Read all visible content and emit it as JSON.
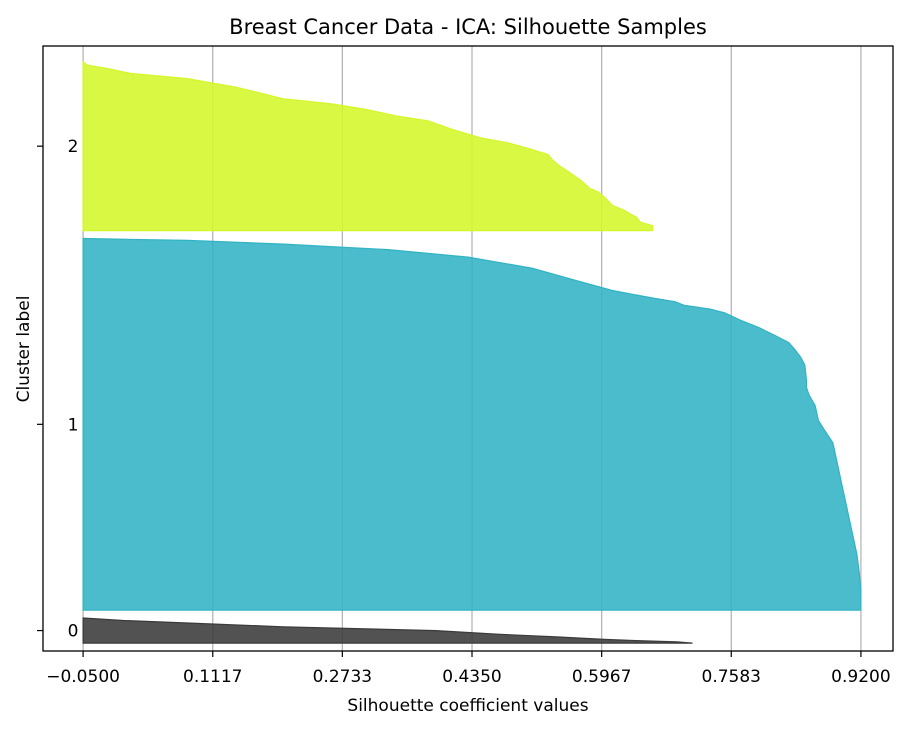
{
  "chart_data": {
    "type": "area",
    "title": "Breast Cancer Data - ICA: Silhouette Samples",
    "xlabel": "Silhouette coefficient values",
    "ylabel": "Cluster label",
    "x_ticks": [
      "−0.0500",
      "0.1117",
      "0.2733",
      "0.4350",
      "0.5967",
      "0.7583",
      "0.9200"
    ],
    "x_tick_values": [
      -0.05,
      0.1117,
      0.2733,
      0.435,
      0.5967,
      0.7583,
      0.92
    ],
    "xlim": [
      -0.1,
      0.96
    ],
    "ylim": [
      0,
      770
    ],
    "grid": "x",
    "series": [
      {
        "name": "0",
        "color": "#3a3a3a",
        "y_start": 10,
        "y_end": 42,
        "profile": [
          [
            0,
            0.71
          ],
          [
            0.05,
            0.69
          ],
          [
            0.1,
            0.64
          ],
          [
            0.15,
            0.6
          ],
          [
            0.25,
            0.54
          ],
          [
            0.35,
            0.47
          ],
          [
            0.5,
            0.39
          ],
          [
            0.65,
            0.2
          ],
          [
            0.8,
            0.08
          ],
          [
            0.9,
            0.0
          ],
          [
            1,
            -0.05
          ]
        ]
      },
      {
        "name": "1",
        "color": "#31b3c4",
        "y_start": 52,
        "y_end": 525,
        "profile": [
          [
            0,
            0.92
          ],
          [
            0.05,
            0.92
          ],
          [
            0.1,
            0.918
          ],
          [
            0.15,
            0.915
          ],
          [
            0.2,
            0.91
          ],
          [
            0.25,
            0.905
          ],
          [
            0.3,
            0.9
          ],
          [
            0.35,
            0.895
          ],
          [
            0.4,
            0.89
          ],
          [
            0.45,
            0.885
          ],
          [
            0.48,
            0.876
          ],
          [
            0.51,
            0.867
          ],
          [
            0.55,
            0.863
          ],
          [
            0.58,
            0.855
          ],
          [
            0.6,
            0.852
          ],
          [
            0.62,
            0.852
          ],
          [
            0.66,
            0.85
          ],
          [
            0.68,
            0.845
          ],
          [
            0.7,
            0.838
          ],
          [
            0.72,
            0.83
          ],
          [
            0.74,
            0.812
          ],
          [
            0.76,
            0.793
          ],
          [
            0.78,
            0.77
          ],
          [
            0.8,
            0.75
          ],
          [
            0.81,
            0.732
          ],
          [
            0.82,
            0.7
          ],
          [
            0.83,
            0.688
          ],
          [
            0.84,
            0.66
          ],
          [
            0.86,
            0.61
          ],
          [
            0.89,
            0.56
          ],
          [
            0.92,
            0.51
          ],
          [
            0.95,
            0.43
          ],
          [
            0.97,
            0.33
          ],
          [
            0.985,
            0.2
          ],
          [
            0.995,
            0.08
          ],
          [
            1,
            -0.05
          ]
        ]
      },
      {
        "name": "2",
        "color": "#d4f72a",
        "y_start": 535,
        "y_end": 750,
        "profile": [
          [
            0,
            0.66
          ],
          [
            0.03,
            0.66
          ],
          [
            0.05,
            0.645
          ],
          [
            0.08,
            0.64
          ],
          [
            0.1,
            0.632
          ],
          [
            0.12,
            0.625
          ],
          [
            0.15,
            0.61
          ],
          [
            0.2,
            0.6
          ],
          [
            0.23,
            0.592
          ],
          [
            0.25,
            0.582
          ],
          [
            0.3,
            0.57
          ],
          [
            0.35,
            0.555
          ],
          [
            0.38,
            0.545
          ],
          [
            0.42,
            0.535
          ],
          [
            0.45,
            0.53
          ],
          [
            0.48,
            0.51
          ],
          [
            0.52,
            0.48
          ],
          [
            0.55,
            0.445
          ],
          [
            0.6,
            0.41
          ],
          [
            0.65,
            0.38
          ],
          [
            0.68,
            0.34
          ],
          [
            0.72,
            0.3
          ],
          [
            0.75,
            0.26
          ],
          [
            0.78,
            0.2
          ],
          [
            0.81,
            0.175
          ],
          [
            0.85,
            0.14
          ],
          [
            0.9,
            0.08
          ],
          [
            0.93,
            0.01
          ],
          [
            0.96,
            -0.02
          ],
          [
            0.98,
            -0.045
          ],
          [
            1,
            -0.05
          ]
        ]
      }
    ]
  }
}
